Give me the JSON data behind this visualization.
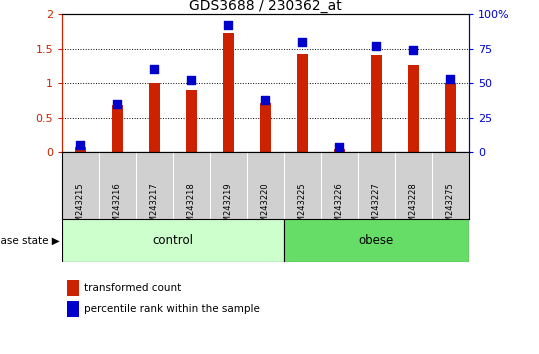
{
  "title": "GDS3688 / 230362_at",
  "samples": [
    "GSM243215",
    "GSM243216",
    "GSM243217",
    "GSM243218",
    "GSM243219",
    "GSM243220",
    "GSM243225",
    "GSM243226",
    "GSM243227",
    "GSM243228",
    "GSM243275"
  ],
  "transformed_count": [
    0.08,
    0.68,
    1.0,
    0.9,
    1.73,
    0.72,
    1.42,
    0.05,
    1.41,
    1.26,
    1.0
  ],
  "percentile_rank": [
    5,
    35,
    60,
    52,
    92,
    38,
    80,
    4,
    77,
    74,
    53
  ],
  "groups": {
    "control": [
      0,
      1,
      2,
      3,
      4,
      5
    ],
    "obese": [
      6,
      7,
      8,
      9,
      10
    ]
  },
  "bar_color": "#cc2200",
  "dot_color": "#0000cc",
  "ylim_left": [
    0,
    2
  ],
  "ylim_right": [
    0,
    100
  ],
  "yticks_left": [
    0,
    0.5,
    1.0,
    1.5,
    2.0
  ],
  "yticks_right": [
    0,
    25,
    50,
    75,
    100
  ],
  "ytick_labels_left": [
    "0",
    "0.5",
    "1",
    "1.5",
    "2"
  ],
  "ytick_labels_right": [
    "0",
    "25",
    "50",
    "75",
    "100%"
  ],
  "control_color": "#ccffcc",
  "obese_color": "#66dd66",
  "tick_bg_color": "#d0d0d0",
  "legend_bar_label": "transformed count",
  "legend_dot_label": "percentile rank within the sample",
  "disease_state_label": "disease state",
  "control_label": "control",
  "obese_label": "obese",
  "bar_width": 0.3,
  "dot_size": 28
}
